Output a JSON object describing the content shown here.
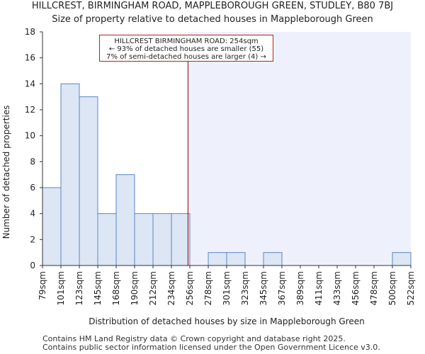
{
  "header": {
    "title": "HILLCREST, BIRMINGHAM ROAD, MAPPLEBOROUGH GREEN, STUDLEY, B80 7BJ",
    "subtitle": "Size of property relative to detached houses in Mappleborough Green"
  },
  "chart_data": {
    "type": "bar",
    "title": "Size of property relative to detached houses in Mappleborough Green",
    "xlabel": "Distribution of detached houses by size in Mappleborough Green",
    "ylabel": "Number of detached properties",
    "ylim": [
      0,
      18
    ],
    "yticks": [
      0,
      2,
      4,
      6,
      8,
      10,
      12,
      14,
      16,
      18
    ],
    "bin_edges": [
      "79sqm",
      "101sqm",
      "123sqm",
      "145sqm",
      "168sqm",
      "190sqm",
      "212sqm",
      "234sqm",
      "256sqm",
      "278sqm",
      "301sqm",
      "323sqm",
      "345sqm",
      "367sqm",
      "389sqm",
      "411sqm",
      "433sqm",
      "456sqm",
      "478sqm",
      "500sqm",
      "522sqm"
    ],
    "values": [
      6,
      14,
      13,
      4,
      7,
      4,
      4,
      4,
      0,
      1,
      1,
      0,
      1,
      0,
      0,
      0,
      0,
      0,
      0,
      1
    ],
    "marker_bin_position": 7.9,
    "annotation": {
      "line1": "HILLCREST BIRMINGHAM ROAD: 254sqm",
      "line2": "← 93% of detached houses are smaller (55)",
      "line3": "7% of semi-detached houses are larger (4) →"
    },
    "colors": {
      "bar_fill": "#dce6f4",
      "bar_stroke": "#5b87c6",
      "shaded_region": "#eef1fb",
      "marker_line": "#8b0000",
      "annotation_border": "#b22222"
    }
  },
  "footer": {
    "line1": "Contains HM Land Registry data © Crown copyright and database right 2025.",
    "line2": "Contains public sector information licensed under the Open Government Licence v3.0."
  }
}
